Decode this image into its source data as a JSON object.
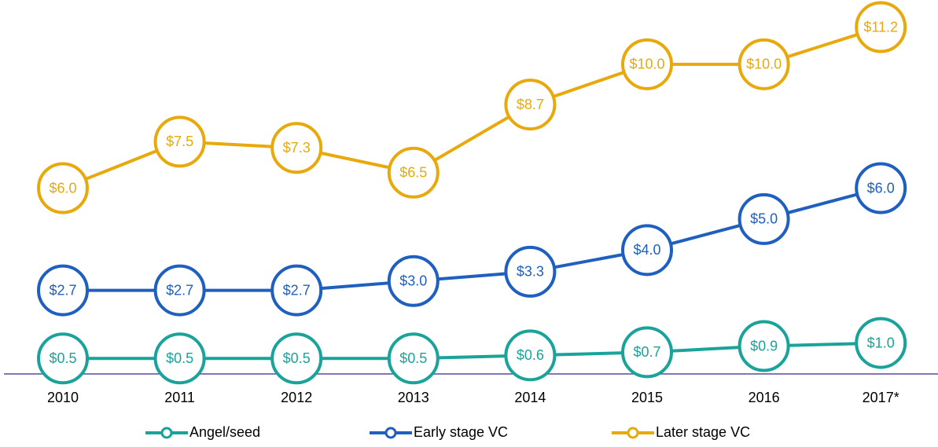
{
  "chart_data": {
    "type": "line",
    "categories": [
      "2010",
      "2011",
      "2012",
      "2013",
      "2014",
      "2015",
      "2016",
      "2017*"
    ],
    "ylim": [
      0,
      12
    ],
    "series": [
      {
        "name": "Angel/seed",
        "color": "#1aa39a",
        "values": [
          0.5,
          0.5,
          0.5,
          0.5,
          0.6,
          0.7,
          0.9,
          1.0
        ],
        "value_labels": [
          "$0.5",
          "$0.5",
          "$0.5",
          "$0.5",
          "$0.6",
          "$0.7",
          "$0.9",
          "$1.0"
        ]
      },
      {
        "name": "Early stage VC",
        "color": "#1f5fbf",
        "values": [
          2.7,
          2.7,
          2.7,
          3.0,
          3.3,
          4.0,
          5.0,
          6.0
        ],
        "value_labels": [
          "$2.7",
          "$2.7",
          "$2.7",
          "$3.0",
          "$3.3",
          "$4.0",
          "$5.0",
          "$6.0"
        ]
      },
      {
        "name": "Later stage VC",
        "color": "#e8a90c",
        "values": [
          6.0,
          7.5,
          7.3,
          6.5,
          8.7,
          10.0,
          10.0,
          11.2
        ],
        "value_labels": [
          "$6.0",
          "$7.5",
          "$7.3",
          "$6.5",
          "$8.7",
          "$10.0",
          "$10.0",
          "$11.2"
        ]
      }
    ],
    "legend": "bottom"
  }
}
